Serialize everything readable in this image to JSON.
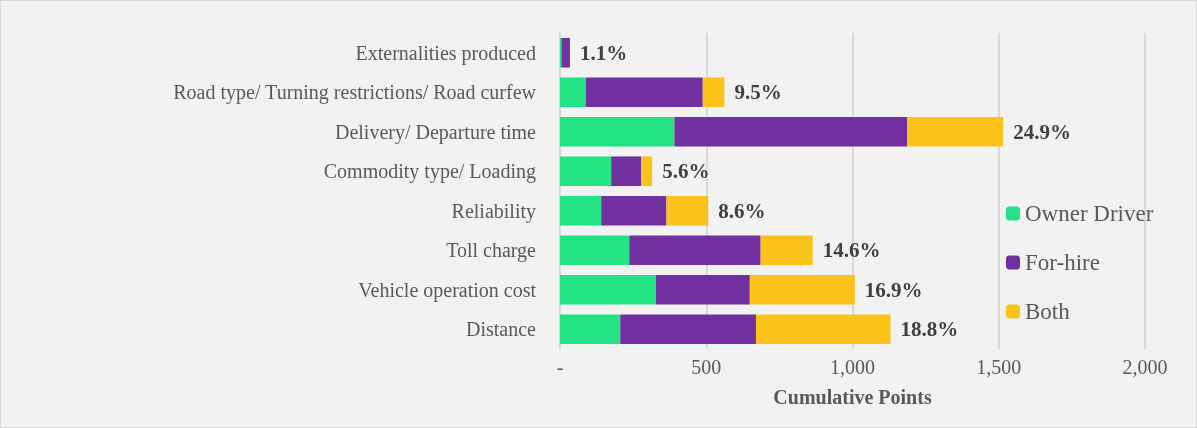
{
  "chart_data": {
    "type": "bar",
    "orientation": "horizontal",
    "stacked": true,
    "xlabel": "Cumulative Points",
    "categories": [
      "Externalities produced",
      "Road type/ Turning restrictions/ Road curfew",
      "Delivery/ Departure time",
      "Commodity type/ Loading",
      "Reliability",
      "Toll charge",
      "Vehicle operation cost",
      "Distance"
    ],
    "series": [
      {
        "name": "Owner Driver",
        "color": "#22e283",
        "values": [
          5,
          88,
          391,
          175,
          141,
          237,
          328,
          206
        ]
      },
      {
        "name": "For-hire",
        "color": "#7030a0",
        "values": [
          29,
          400,
          796,
          103,
          223,
          449,
          321,
          464
        ]
      },
      {
        "name": "Both",
        "color": "#fbc21a",
        "values": [
          null,
          74,
          328,
          37,
          143,
          178,
          359,
          460
        ]
      }
    ],
    "annotations": [
      {
        "text": "1.1%",
        "x": 34,
        "y": "Externalities produced"
      },
      {
        "text": "9.5%",
        "x": 562,
        "y": "Road type/ Turning restrictions/ Road curfew"
      },
      {
        "text": "24.9%",
        "x": 1515,
        "y": "Delivery/ Departure time"
      },
      {
        "text": "5.6%",
        "x": 315,
        "y": "Commodity type/ Loading"
      },
      {
        "text": "8.6%",
        "x": 507,
        "y": "Reliability"
      },
      {
        "text": "14.6%",
        "x": 864,
        "y": "Toll charge"
      },
      {
        "text": "16.9%",
        "x": 1008,
        "y": "Vehicle operation cost"
      },
      {
        "text": "18.8%",
        "x": 1130,
        "y": "Distance"
      }
    ],
    "xlim": [
      0,
      2000
    ],
    "xticks": [
      {
        "value": 0,
        "label": "-"
      },
      {
        "value": 500,
        "label": "500"
      },
      {
        "value": 1000,
        "label": "1,000"
      },
      {
        "value": 1500,
        "label": "1,500"
      },
      {
        "value": 2000,
        "label": "2,000"
      }
    ],
    "grid": "x",
    "legend": "right"
  }
}
